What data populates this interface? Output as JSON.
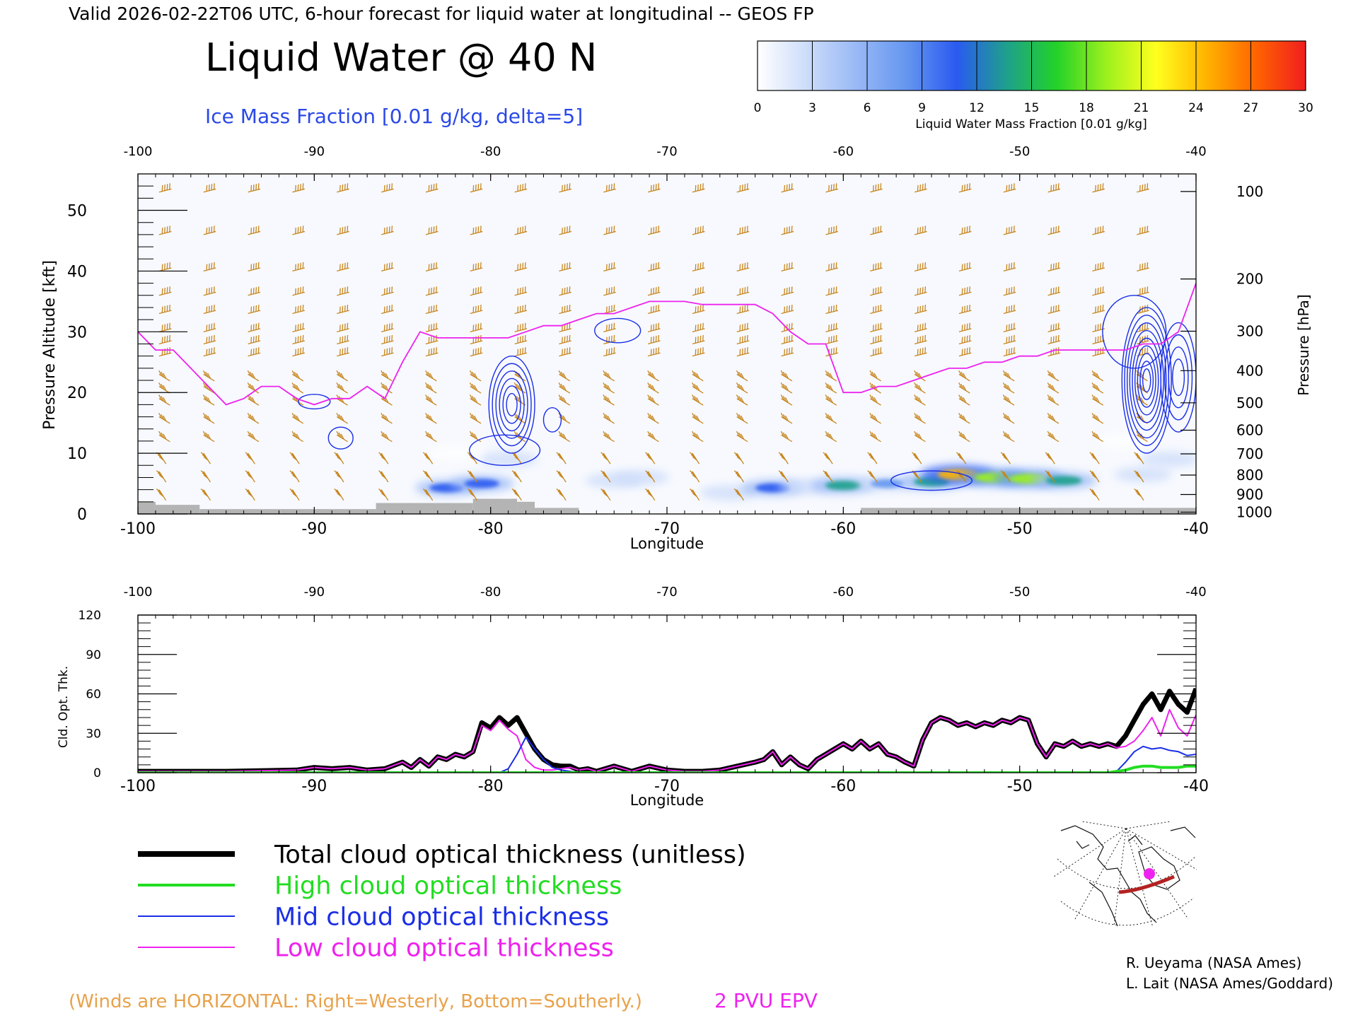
{
  "header": {
    "valid_line": "Valid 2026-02-22T06 UTC, 6-hour forecast for liquid water at longitudinal -- GEOS FP",
    "title": "Liquid Water @ 40 N",
    "subtitle": "Ice Mass Fraction [0.01 g/kg, delta=5]"
  },
  "colorbar": {
    "ticks": [
      "0",
      "3",
      "6",
      "9",
      "12",
      "15",
      "18",
      "21",
      "24",
      "27",
      "30"
    ],
    "label": "Liquid Water Mass Fraction [0.01 g/kg]",
    "colors": [
      "#ffffff",
      "#ccdcfa",
      "#98b8f6",
      "#6496f0",
      "#2a5af0",
      "#1ea08c",
      "#22d228",
      "#9cf01e",
      "#ffff1e",
      "#ffb400",
      "#ff6400",
      "#f01e1e"
    ]
  },
  "footer": {
    "winds_note": "(Winds are HORIZONTAL: Right=Westerly, Bottom=Southerly.)",
    "epv_label": "2 PVU EPV",
    "credit1": "R. Ueyama (NASA Ames)",
    "credit2": "L. Lait (NASA Ames/Goddard)"
  },
  "legend": [
    {
      "label": "Total cloud optical thickness (unitless)",
      "color": "#000000"
    },
    {
      "label": "High cloud optical thickness",
      "color": "#22dd22"
    },
    {
      "label": "Mid cloud optical thickness",
      "color": "#1a2ee6"
    },
    {
      "label": "Low cloud optical thickness",
      "color": "#ee22ee"
    }
  ],
  "colors": {
    "wind_barb": "#c8861e",
    "epv": "#ee22ee",
    "ice": "#1a2ee6",
    "terrain": "#b4b4b4"
  },
  "chart_data": [
    {
      "type": "heatmap",
      "title": "Liquid Water @ 40 N",
      "xlabel": "Longitude",
      "ylabel": "Pressure Altitude [kft]",
      "ylabel_right": "Pressure [hPa]",
      "xlim": [
        -100,
        -40
      ],
      "ylim": [
        0,
        56
      ],
      "x_ticks": [
        "-100",
        "-90",
        "-80",
        "-70",
        "-60",
        "-50",
        "-40"
      ],
      "y_ticks": [
        "0",
        "10",
        "20",
        "30",
        "40",
        "50"
      ],
      "pressure_ticks": [
        {
          "label": "100",
          "kft": 53.1
        },
        {
          "label": "200",
          "kft": 38.7
        },
        {
          "label": "300",
          "kft": 30.1
        },
        {
          "label": "400",
          "kft": 23.6
        },
        {
          "label": "500",
          "kft": 18.3
        },
        {
          "label": "600",
          "kft": 13.8
        },
        {
          "label": "700",
          "kft": 9.9
        },
        {
          "label": "800",
          "kft": 6.4
        },
        {
          "label": "900",
          "kft": 3.2
        },
        {
          "label": "1000",
          "kft": 0.3
        }
      ],
      "liquid_water_blobs": [
        {
          "lon": -82.5,
          "kft": 4.3,
          "value": 10
        },
        {
          "lon": -80.5,
          "kft": 5.0,
          "value": 12
        },
        {
          "lon": -79.0,
          "kft": 9.0,
          "value": 6
        },
        {
          "lon": -82.0,
          "kft": 10.0,
          "value": 3
        },
        {
          "lon": -73.0,
          "kft": 5.5,
          "value": 4
        },
        {
          "lon": -71.5,
          "kft": 6.0,
          "value": 4
        },
        {
          "lon": -66.5,
          "kft": 3.5,
          "value": 5
        },
        {
          "lon": -64.0,
          "kft": 4.3,
          "value": 11
        },
        {
          "lon": -62.0,
          "kft": 4.5,
          "value": 6
        },
        {
          "lon": -60.0,
          "kft": 4.7,
          "value": 14
        },
        {
          "lon": -57.5,
          "kft": 5.0,
          "value": 9
        },
        {
          "lon": -55.0,
          "kft": 5.3,
          "value": 13
        },
        {
          "lon": -53.5,
          "kft": 6.5,
          "value": 24
        },
        {
          "lon": -51.5,
          "kft": 6.0,
          "value": 18
        },
        {
          "lon": -49.5,
          "kft": 5.8,
          "value": 20
        },
        {
          "lon": -47.5,
          "kft": 5.5,
          "value": 14
        },
        {
          "lon": -43.0,
          "kft": 6.5,
          "value": 5
        },
        {
          "lon": -41.5,
          "kft": 9.0,
          "value": 5
        },
        {
          "lon": -44.0,
          "kft": 12.0,
          "value": 3
        }
      ],
      "ice_contours": [
        {
          "lon": -78.8,
          "kft": 18.0,
          "rx": 1.3,
          "ry": 8.0,
          "levels": 6
        },
        {
          "lon": -79.2,
          "kft": 10.5,
          "rx": 2.0,
          "ry": 2.5,
          "levels": 1
        },
        {
          "lon": -90.0,
          "kft": 18.5,
          "rx": 0.9,
          "ry": 1.2,
          "levels": 1
        },
        {
          "lon": -88.5,
          "kft": 12.5,
          "rx": 0.7,
          "ry": 1.8,
          "levels": 1
        },
        {
          "lon": -72.8,
          "kft": 30.2,
          "rx": 1.3,
          "ry": 2.0,
          "levels": 1
        },
        {
          "lon": -76.5,
          "kft": 15.5,
          "rx": 0.5,
          "ry": 2.0,
          "levels": 1
        },
        {
          "lon": -55.0,
          "kft": 5.5,
          "rx": 2.3,
          "ry": 1.6,
          "levels": 1
        },
        {
          "lon": -42.8,
          "kft": 22.0,
          "rx": 1.4,
          "ry": 12.0,
          "levels": 9
        },
        {
          "lon": -41.0,
          "kft": 22.5,
          "rx": 1.0,
          "ry": 9.0,
          "levels": 4
        },
        {
          "lon": -43.5,
          "kft": 30.0,
          "rx": 1.8,
          "ry": 6.0,
          "levels": 1
        }
      ],
      "epv_2pvu": {
        "x": [
          -100,
          -99,
          -98,
          -97,
          -96,
          -95,
          -94,
          -93,
          -92,
          -91,
          -90,
          -89,
          -88,
          -87,
          -86,
          -85,
          -84,
          -83,
          -82,
          -81,
          -80,
          -79,
          -78,
          -77,
          -76,
          -75,
          -74,
          -73,
          -72,
          -71,
          -70,
          -69,
          -68,
          -67,
          -66,
          -65,
          -64,
          -63,
          -62,
          -61,
          -60,
          -59,
          -58,
          -57,
          -56,
          -55,
          -54,
          -53,
          -52,
          -51,
          -50,
          -49,
          -48,
          -47,
          -46,
          -45,
          -44,
          -43,
          -42,
          -41,
          -40
        ],
        "y": [
          30,
          27,
          27,
          24,
          21,
          18,
          19,
          21,
          21,
          19,
          18,
          19,
          19,
          21,
          19,
          25,
          30,
          29,
          29,
          29,
          29,
          29,
          30,
          31,
          31,
          32,
          33,
          33,
          34,
          35,
          35,
          35,
          34.5,
          34.5,
          34.5,
          34.5,
          33,
          30,
          28,
          28,
          20,
          20,
          21,
          21,
          22,
          23,
          24,
          24,
          25,
          25,
          26,
          26,
          27,
          27,
          27,
          27,
          27,
          28,
          28,
          30,
          38
        ]
      },
      "terrain": [
        {
          "lon_start": -100,
          "lon_end": -99,
          "kft": 2.0
        },
        {
          "lon_start": -99,
          "lon_end": -96.5,
          "kft": 1.5
        },
        {
          "lon_start": -96.5,
          "lon_end": -86.5,
          "kft": 0.8
        },
        {
          "lon_start": -86.5,
          "lon_end": -81.0,
          "kft": 1.8
        },
        {
          "lon_start": -81.0,
          "lon_end": -78.5,
          "kft": 2.5
        },
        {
          "lon_start": -78.5,
          "lon_end": -77.5,
          "kft": 2.0
        },
        {
          "lon_start": -77.5,
          "lon_end": -75.0,
          "kft": 1.0
        },
        {
          "lon_start": -59.0,
          "lon_end": -40.0,
          "kft": 1.0
        }
      ]
    },
    {
      "type": "line",
      "xlabel": "Longitude",
      "ylabel": "Cld. Opt. Thk.",
      "xlim": [
        -100,
        -40
      ],
      "ylim": [
        0,
        120
      ],
      "x_ticks": [
        "-100",
        "-90",
        "-80",
        "-70",
        "-60",
        "-50",
        "-40"
      ],
      "y_ticks": [
        "0",
        "30",
        "60",
        "90",
        "120"
      ],
      "x": [
        -100,
        -95,
        -91,
        -90,
        -89,
        -88,
        -87,
        -86,
        -85,
        -84.5,
        -84,
        -83.5,
        -83,
        -82.5,
        -82,
        -81.5,
        -81,
        -80.5,
        -80,
        -79.5,
        -79,
        -78.5,
        -78,
        -77.5,
        -77,
        -76.5,
        -76,
        -75.5,
        -75,
        -74.5,
        -74,
        -73,
        -72,
        -71,
        -70,
        -69,
        -68,
        -67,
        -66,
        -65,
        -64.5,
        -64,
        -63.5,
        -63,
        -62.5,
        -62,
        -61.5,
        -61,
        -60.5,
        -60,
        -59.5,
        -59,
        -58.5,
        -58,
        -57.5,
        -57,
        -56.5,
        -56,
        -55.5,
        -55,
        -54.5,
        -54,
        -53.5,
        -53,
        -52.5,
        -52,
        -51.5,
        -51,
        -50.5,
        -50,
        -49.5,
        -49,
        -48.5,
        -48,
        -47.5,
        -47,
        -46.5,
        -46,
        -45.5,
        -45,
        -44.5,
        -44,
        -43.5,
        -43,
        -42.5,
        -42,
        -41.5,
        -41,
        -40.5,
        -40
      ],
      "series": [
        {
          "name": "Total cloud optical thickness (unitless)",
          "values": [
            1,
            1,
            2,
            4,
            3,
            4,
            2,
            3,
            8,
            4,
            10,
            5,
            12,
            10,
            14,
            12,
            16,
            38,
            34,
            42,
            36,
            42,
            30,
            18,
            10,
            6,
            5,
            5,
            2,
            3,
            1,
            5,
            1,
            5,
            2,
            1,
            1,
            2,
            5,
            8,
            10,
            16,
            6,
            12,
            6,
            3,
            10,
            14,
            18,
            22,
            18,
            24,
            18,
            22,
            14,
            12,
            8,
            5,
            25,
            38,
            42,
            40,
            36,
            38,
            35,
            38,
            36,
            40,
            38,
            42,
            40,
            22,
            12,
            22,
            20,
            24,
            20,
            22,
            20,
            22,
            20,
            28,
            40,
            52,
            60,
            48,
            62,
            52,
            46,
            64
          ]
        },
        {
          "name": "High cloud optical thickness",
          "values": [
            0,
            0,
            0,
            0,
            0,
            0,
            0,
            0,
            0,
            0,
            0,
            0,
            0,
            0,
            0,
            0,
            0,
            0,
            0,
            0,
            0,
            0,
            0,
            0,
            0,
            0,
            0,
            0,
            0,
            0,
            0,
            0,
            0,
            0,
            0,
            0,
            0,
            0,
            0,
            0,
            0,
            0,
            0,
            0,
            0,
            0,
            0,
            0,
            0,
            0,
            0,
            0,
            0,
            0,
            0,
            0,
            0,
            0,
            0,
            0,
            0,
            0,
            0,
            0,
            0,
            0,
            0,
            0,
            0,
            0,
            0,
            0,
            0,
            0,
            0,
            0,
            0,
            0,
            0,
            0,
            1,
            2,
            4,
            5,
            5,
            4,
            4,
            4,
            5,
            5
          ]
        },
        {
          "name": "Mid cloud optical thickness",
          "values": [
            0,
            0,
            0,
            0,
            0,
            0,
            0,
            0,
            0,
            0,
            0,
            0,
            0,
            0,
            0,
            0,
            0,
            0,
            0,
            0,
            3,
            14,
            27,
            18,
            10,
            4,
            2,
            1,
            0,
            0,
            0,
            0,
            0,
            0,
            0,
            0,
            0,
            0,
            0,
            0,
            0,
            0,
            0,
            0,
            0,
            0,
            0,
            0,
            0,
            0,
            0,
            0,
            0,
            0,
            0,
            0,
            0,
            0,
            0,
            0,
            0,
            0,
            0,
            0,
            0,
            0,
            0,
            0,
            0,
            0,
            0,
            0,
            0,
            0,
            0,
            0,
            0,
            0,
            0,
            0,
            1,
            8,
            16,
            20,
            18,
            19,
            17,
            16,
            13,
            14
          ]
        },
        {
          "name": "Low cloud optical thickness",
          "values": [
            1,
            1,
            2,
            4,
            3,
            4,
            2,
            3,
            8,
            4,
            10,
            5,
            12,
            10,
            14,
            12,
            16,
            36,
            32,
            40,
            33,
            28,
            10,
            4,
            2,
            2,
            3,
            4,
            2,
            3,
            1,
            5,
            1,
            5,
            2,
            1,
            1,
            2,
            5,
            8,
            10,
            16,
            6,
            12,
            6,
            3,
            10,
            14,
            18,
            22,
            18,
            24,
            18,
            22,
            14,
            12,
            8,
            5,
            25,
            38,
            42,
            40,
            36,
            38,
            35,
            38,
            36,
            40,
            38,
            42,
            40,
            22,
            12,
            22,
            20,
            24,
            20,
            22,
            20,
            22,
            19,
            20,
            24,
            32,
            42,
            28,
            48,
            34,
            28,
            44
          ]
        }
      ]
    }
  ]
}
